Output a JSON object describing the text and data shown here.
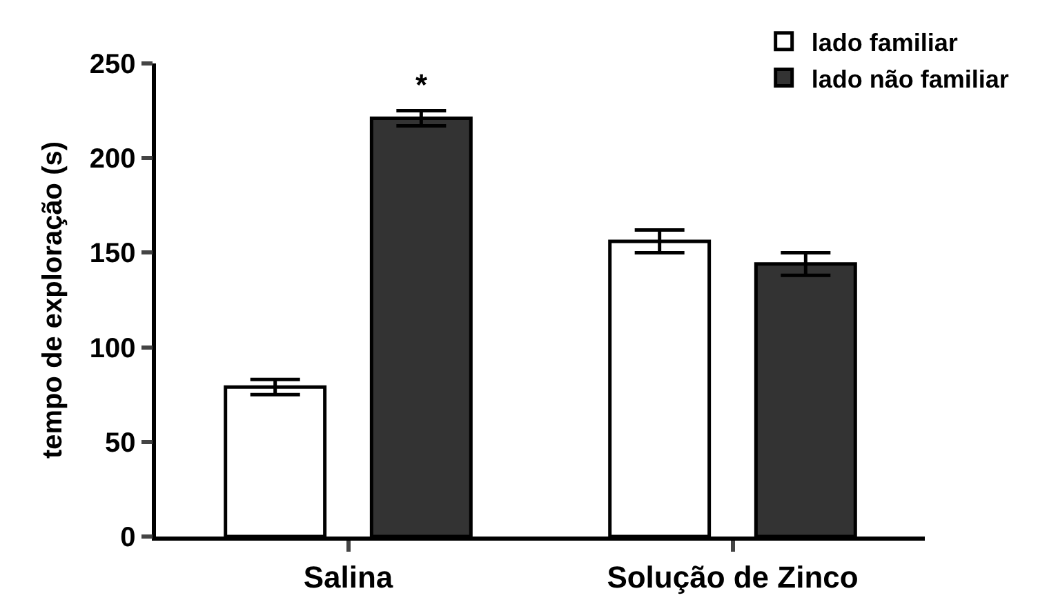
{
  "chart_data": {
    "type": "bar",
    "ylabel": "tempo de exploração (s)",
    "categories": [
      "Salina",
      "Solução de Zinco"
    ],
    "series": [
      {
        "name": "lado familiar",
        "color": "#ffffff",
        "values": [
          79,
          156
        ],
        "errors": [
          4,
          6
        ]
      },
      {
        "name": "lado não familiar",
        "color": "#333333",
        "values": [
          221,
          144
        ],
        "errors": [
          4,
          6
        ]
      }
    ],
    "ylim": [
      0,
      250
    ],
    "yticks": [
      0,
      50,
      100,
      150,
      200,
      250
    ],
    "annotations": [
      "*"
    ],
    "legend": "top right"
  }
}
